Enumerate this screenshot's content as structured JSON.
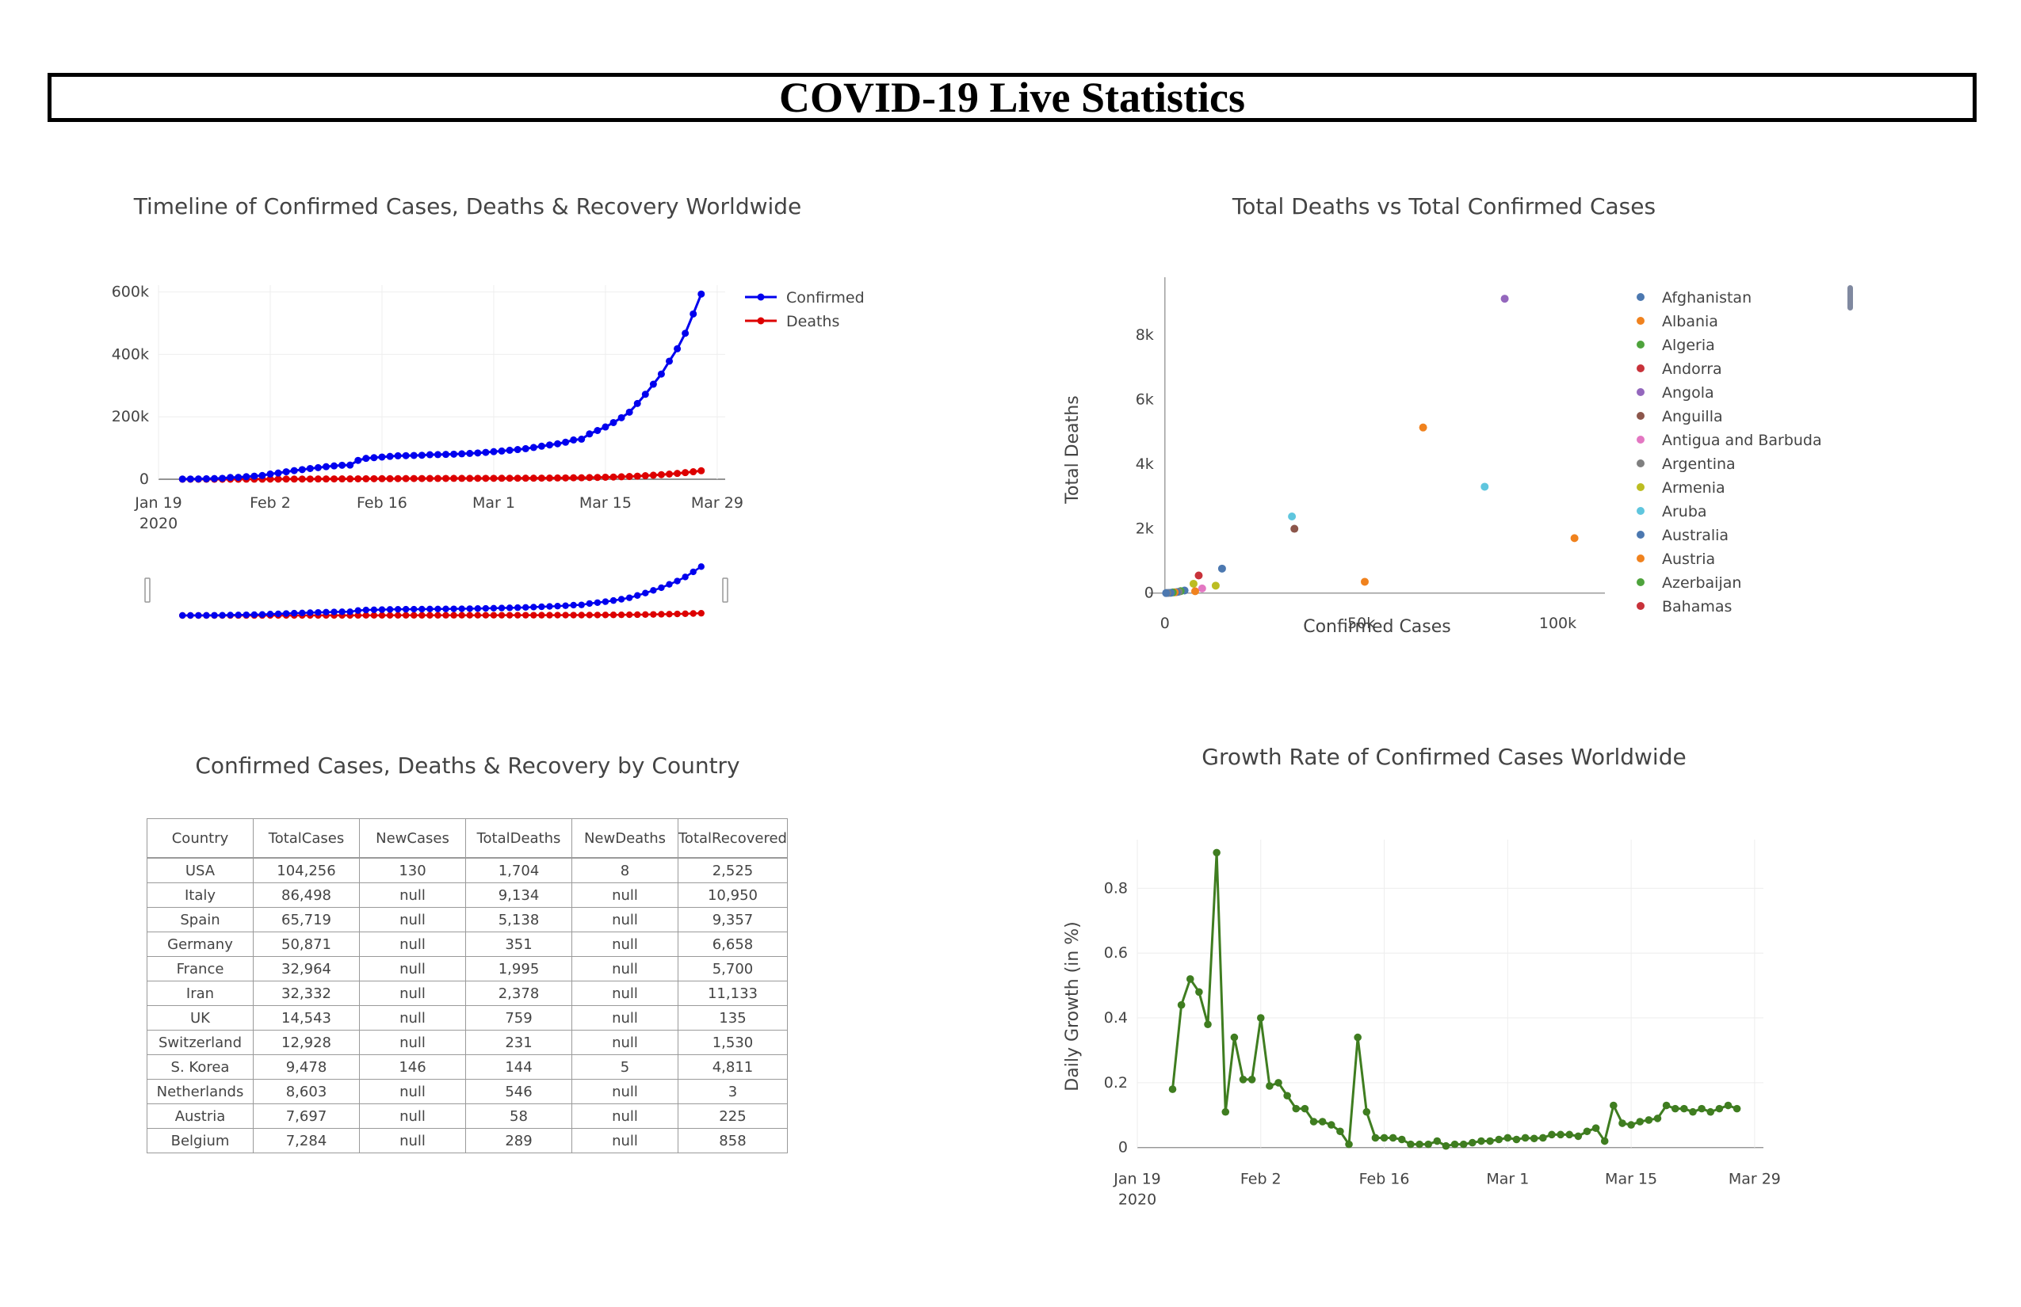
{
  "page": {
    "title": "COVID-19 Live Statistics"
  },
  "chart_data": [
    {
      "id": "timeline",
      "type": "line",
      "title": "Timeline of Confirmed Cases, Deaths & Recovery Worldwide",
      "xlabel": "",
      "ylabel": "",
      "x_ticks": [
        "Jan 19",
        "Feb 2",
        "Feb 16",
        "Mar 1",
        "Mar 15",
        "Mar 29"
      ],
      "x_tick_year": "2020",
      "y_ticks": [
        "0",
        "200k",
        "400k",
        "600k"
      ],
      "x_range": [
        "2020-01-19",
        "2020-03-30"
      ],
      "ylim": [
        0,
        600000
      ],
      "x_start": "2020-01-22",
      "legend_position": "top-right",
      "range_slider": true,
      "series": [
        {
          "name": "Confirmed",
          "color": "#0000ee",
          "values": [
            555,
            654,
            941,
            1434,
            2118,
            2927,
            5578,
            6166,
            8234,
            9927,
            12038,
            16787,
            19881,
            23892,
            27635,
            30817,
            34391,
            37120,
            40150,
            42762,
            44802,
            45221,
            60368,
            66885,
            69030,
            71224,
            73258,
            75136,
            75639,
            76197,
            76819,
            78572,
            78958,
            79561,
            80406,
            81388,
            82746,
            84112,
            86011,
            88369,
            90306,
            92840,
            95120,
            97886,
            101801,
            105847,
            109821,
            113590,
            118620,
            125875,
            128343,
            145193,
            156097,
            167449,
            181546,
            197168,
            214915,
            242713,
            272167,
            304528,
            336953,
            378231,
            418045,
            467653,
            529591,
            593291
          ]
        },
        {
          "name": "Deaths",
          "color": "#dd0000",
          "values": [
            17,
            18,
            26,
            42,
            56,
            82,
            131,
            133,
            171,
            213,
            259,
            362,
            426,
            492,
            564,
            634,
            719,
            806,
            906,
            1013,
            1113,
            1118,
            1371,
            1523,
            1666,
            1770,
            1868,
            2007,
            2122,
            2247,
            2251,
            2458,
            2469,
            2629,
            2708,
            2770,
            2814,
            2872,
            2941,
            2996,
            3085,
            3160,
            3254,
            3348,
            3460,
            3558,
            3802,
            3988,
            4262,
            4615,
            4720,
            5404,
            5819,
            6440,
            7126,
            7905,
            8733,
            9867,
            11299,
            12973,
            14651,
            16505,
            18625,
            21181,
            23970,
            27198
          ]
        }
      ]
    },
    {
      "id": "scatter",
      "type": "scatter",
      "title": "Total Deaths vs Total Confirmed Cases",
      "xlabel": "Confirmed Cases",
      "ylabel": "Total Deaths",
      "x_ticks": [
        "0",
        "50k",
        "100k"
      ],
      "y_ticks": [
        "0",
        "2k",
        "4k",
        "6k",
        "8k"
      ],
      "xlim": [
        -4000,
        112000
      ],
      "ylim": [
        -400,
        9800
      ],
      "legend_position": "right",
      "legend": [
        {
          "name": "Afghanistan",
          "color": "#4c78b0"
        },
        {
          "name": "Albania",
          "color": "#f0821e"
        },
        {
          "name": "Algeria",
          "color": "#4ea33c"
        },
        {
          "name": "Andorra",
          "color": "#c8323a"
        },
        {
          "name": "Angola",
          "color": "#9467bd"
        },
        {
          "name": "Anguilla",
          "color": "#8c564b"
        },
        {
          "name": "Antigua and Barbuda",
          "color": "#e377c2"
        },
        {
          "name": "Argentina",
          "color": "#7f7f7f"
        },
        {
          "name": "Armenia",
          "color": "#bcbd22"
        },
        {
          "name": "Aruba",
          "color": "#5fc6de"
        },
        {
          "name": "Australia",
          "color": "#4c78b0"
        },
        {
          "name": "Austria",
          "color": "#f0821e"
        },
        {
          "name": "Azerbaijan",
          "color": "#4ea33c"
        },
        {
          "name": "Bahamas",
          "color": "#c8323a"
        }
      ],
      "points": [
        {
          "x": 86498,
          "y": 9134,
          "color": "#9467bd"
        },
        {
          "x": 65719,
          "y": 5138,
          "color": "#f0821e"
        },
        {
          "x": 81394,
          "y": 3300,
          "color": "#5fc6de"
        },
        {
          "x": 32332,
          "y": 2378,
          "color": "#5fc6de"
        },
        {
          "x": 32964,
          "y": 1995,
          "color": "#8c564b"
        },
        {
          "x": 104256,
          "y": 1704,
          "color": "#f0821e"
        },
        {
          "x": 14543,
          "y": 759,
          "color": "#4c78b0"
        },
        {
          "x": 8603,
          "y": 546,
          "color": "#c8323a"
        },
        {
          "x": 50871,
          "y": 351,
          "color": "#f0821e"
        },
        {
          "x": 7284,
          "y": 289,
          "color": "#bcbd22"
        },
        {
          "x": 12928,
          "y": 231,
          "color": "#bcbd22"
        },
        {
          "x": 9478,
          "y": 144,
          "color": "#e377c2"
        },
        {
          "x": 7697,
          "y": 58,
          "color": "#f0821e"
        },
        {
          "x": 5000,
          "y": 80,
          "color": "#4c78b0"
        },
        {
          "x": 4000,
          "y": 60,
          "color": "#4ea33c"
        },
        {
          "x": 3500,
          "y": 40,
          "color": "#7f7f7f"
        },
        {
          "x": 3000,
          "y": 30,
          "color": "#4c78b0"
        },
        {
          "x": 2500,
          "y": 25,
          "color": "#f0821e"
        },
        {
          "x": 2000,
          "y": 20,
          "color": "#4ea33c"
        },
        {
          "x": 1500,
          "y": 10,
          "color": "#4c78b0"
        },
        {
          "x": 1000,
          "y": 5,
          "color": "#4c78b0"
        },
        {
          "x": 600,
          "y": 3,
          "color": "#7f7f7f"
        },
        {
          "x": 300,
          "y": 1,
          "color": "#4c78b0"
        }
      ]
    },
    {
      "id": "growth",
      "type": "line",
      "title": "Growth Rate of Confirmed Cases Worldwide",
      "xlabel": "",
      "ylabel": "Daily Growth (in %)",
      "x_ticks": [
        "Jan 19",
        "Feb 2",
        "Feb 16",
        "Mar 1",
        "Mar 15",
        "Mar 29"
      ],
      "x_tick_year": "2020",
      "y_ticks": [
        "0",
        "0.2",
        "0.4",
        "0.6",
        "0.8"
      ],
      "x_range": [
        "2020-01-19",
        "2020-03-30"
      ],
      "ylim": [
        -0.03,
        0.95
      ],
      "x_start": "2020-01-23",
      "series": [
        {
          "name": "",
          "color": "#3f7d20",
          "values": [
            0.18,
            0.44,
            0.52,
            0.48,
            0.38,
            0.91,
            0.11,
            0.34,
            0.21,
            0.21,
            0.4,
            0.19,
            0.2,
            0.16,
            0.12,
            0.12,
            0.08,
            0.08,
            0.07,
            0.05,
            0.01,
            0.34,
            0.11,
            0.03,
            0.03,
            0.03,
            0.025,
            0.01,
            0.01,
            0.01,
            0.02,
            0.005,
            0.01,
            0.01,
            0.015,
            0.02,
            0.02,
            0.025,
            0.03,
            0.025,
            0.03,
            0.028,
            0.03,
            0.04,
            0.04,
            0.04,
            0.035,
            0.05,
            0.06,
            0.02,
            0.13,
            0.075,
            0.07,
            0.08,
            0.085,
            0.09,
            0.13,
            0.12,
            0.12,
            0.11,
            0.12,
            0.11,
            0.12,
            0.13,
            0.12
          ]
        }
      ]
    }
  ],
  "table_panel": {
    "title": "Confirmed Cases, Deaths & Recovery by Country",
    "headers": [
      "Country",
      "TotalCases",
      "NewCases",
      "TotalDeaths",
      "NewDeaths",
      "TotalRecovered"
    ],
    "rows": [
      [
        "USA",
        "104,256",
        "130",
        "1,704",
        "8",
        "2,525"
      ],
      [
        "Italy",
        "86,498",
        "null",
        "9,134",
        "null",
        "10,950"
      ],
      [
        "Spain",
        "65,719",
        "null",
        "5,138",
        "null",
        "9,357"
      ],
      [
        "Germany",
        "50,871",
        "null",
        "351",
        "null",
        "6,658"
      ],
      [
        "France",
        "32,964",
        "null",
        "1,995",
        "null",
        "5,700"
      ],
      [
        "Iran",
        "32,332",
        "null",
        "2,378",
        "null",
        "11,133"
      ],
      [
        "UK",
        "14,543",
        "null",
        "759",
        "null",
        "135"
      ],
      [
        "Switzerland",
        "12,928",
        "null",
        "231",
        "null",
        "1,530"
      ],
      [
        "S. Korea",
        "9,478",
        "146",
        "144",
        "5",
        "4,811"
      ],
      [
        "Netherlands",
        "8,603",
        "null",
        "546",
        "null",
        "3"
      ],
      [
        "Austria",
        "7,697",
        "null",
        "58",
        "null",
        "225"
      ],
      [
        "Belgium",
        "7,284",
        "null",
        "289",
        "null",
        "858"
      ]
    ]
  }
}
